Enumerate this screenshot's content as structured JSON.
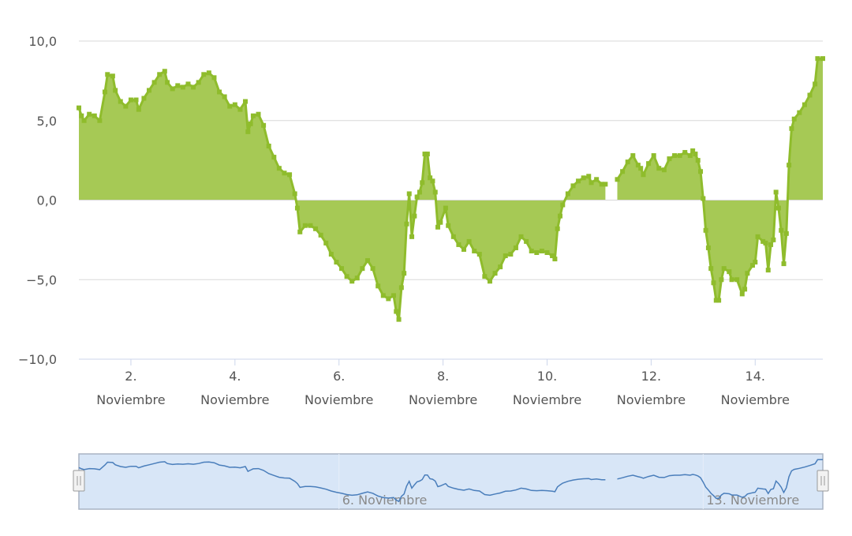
{
  "chart_data": {
    "type": "area",
    "x_unit": "day of November",
    "ylim": [
      -10,
      10
    ],
    "y_ticks": [
      {
        "value": 10,
        "label": "10,0"
      },
      {
        "value": 5,
        "label": "5,0"
      },
      {
        "value": 0,
        "label": "0,0"
      },
      {
        "value": -5,
        "label": "−5,0"
      },
      {
        "value": -10,
        "label": "−10,0"
      }
    ],
    "x_ticks": [
      {
        "value": 2,
        "day": "2.",
        "month": "Noviembre"
      },
      {
        "value": 4,
        "day": "4.",
        "month": "Noviembre"
      },
      {
        "value": 6,
        "day": "6.",
        "month": "Noviembre"
      },
      {
        "value": 8,
        "day": "8.",
        "month": "Noviembre"
      },
      {
        "value": 10,
        "day": "10.",
        "month": "Noviembre"
      },
      {
        "value": 12,
        "day": "12.",
        "month": "Noviembre"
      },
      {
        "value": 14,
        "day": "14.",
        "month": "Noviembre"
      }
    ],
    "grid": true,
    "colors": {
      "area": "#a6c955",
      "line": "#8fbc2c",
      "navigator_line": "#4a7ebb",
      "navigator_fill": "#d8e6f7"
    },
    "series": [
      {
        "segments": [
          [
            [
              1.0,
              5.8
            ],
            [
              1.05,
              5.3
            ],
            [
              1.1,
              5.0
            ],
            [
              1.2,
              5.4
            ],
            [
              1.3,
              5.3
            ],
            [
              1.4,
              5.0
            ],
            [
              1.5,
              6.8
            ],
            [
              1.55,
              7.9
            ],
            [
              1.65,
              7.8
            ],
            [
              1.7,
              6.9
            ],
            [
              1.8,
              6.2
            ],
            [
              1.9,
              5.9
            ],
            [
              2.0,
              6.3
            ],
            [
              2.1,
              6.3
            ],
            [
              2.15,
              5.7
            ],
            [
              2.25,
              6.4
            ],
            [
              2.35,
              6.9
            ],
            [
              2.45,
              7.4
            ],
            [
              2.55,
              7.9
            ],
            [
              2.65,
              8.1
            ],
            [
              2.7,
              7.4
            ],
            [
              2.8,
              7.0
            ],
            [
              2.9,
              7.2
            ],
            [
              3.0,
              7.1
            ],
            [
              3.1,
              7.3
            ],
            [
              3.2,
              7.1
            ],
            [
              3.3,
              7.4
            ],
            [
              3.4,
              7.9
            ],
            [
              3.5,
              8.0
            ],
            [
              3.6,
              7.7
            ],
            [
              3.7,
              6.8
            ],
            [
              3.8,
              6.5
            ],
            [
              3.9,
              5.9
            ],
            [
              4.0,
              6.0
            ],
            [
              4.1,
              5.7
            ],
            [
              4.2,
              6.2
            ],
            [
              4.25,
              4.3
            ],
            [
              4.3,
              4.8
            ],
            [
              4.35,
              5.3
            ],
            [
              4.45,
              5.4
            ],
            [
              4.55,
              4.7
            ],
            [
              4.65,
              3.4
            ],
            [
              4.75,
              2.7
            ],
            [
              4.85,
              2.0
            ],
            [
              4.95,
              1.7
            ],
            [
              5.05,
              1.6
            ],
            [
              5.15,
              0.4
            ],
            [
              5.2,
              -0.5
            ],
            [
              5.25,
              -2.0
            ],
            [
              5.35,
              -1.6
            ],
            [
              5.45,
              -1.6
            ],
            [
              5.55,
              -1.8
            ],
            [
              5.65,
              -2.2
            ],
            [
              5.75,
              -2.7
            ],
            [
              5.85,
              -3.4
            ],
            [
              5.95,
              -3.9
            ],
            [
              6.05,
              -4.3
            ],
            [
              6.15,
              -4.8
            ],
            [
              6.25,
              -5.1
            ],
            [
              6.35,
              -4.9
            ],
            [
              6.45,
              -4.3
            ],
            [
              6.55,
              -3.8
            ],
            [
              6.65,
              -4.3
            ],
            [
              6.75,
              -5.4
            ],
            [
              6.85,
              -6.0
            ],
            [
              6.95,
              -6.2
            ],
            [
              7.05,
              -6.0
            ],
            [
              7.1,
              -7.0
            ],
            [
              7.15,
              -7.5
            ],
            [
              7.2,
              -5.5
            ],
            [
              7.25,
              -4.6
            ],
            [
              7.3,
              -1.5
            ],
            [
              7.35,
              0.4
            ],
            [
              7.4,
              -2.3
            ],
            [
              7.45,
              -1.0
            ],
            [
              7.5,
              0.2
            ],
            [
              7.55,
              0.5
            ],
            [
              7.6,
              1.1
            ],
            [
              7.65,
              2.9
            ],
            [
              7.7,
              2.9
            ],
            [
              7.75,
              1.4
            ],
            [
              7.8,
              1.2
            ],
            [
              7.85,
              0.5
            ],
            [
              7.9,
              -1.7
            ],
            [
              7.95,
              -1.4
            ],
            [
              8.05,
              -0.5
            ],
            [
              8.1,
              -1.6
            ],
            [
              8.2,
              -2.3
            ],
            [
              8.3,
              -2.8
            ],
            [
              8.4,
              -3.1
            ],
            [
              8.5,
              -2.6
            ],
            [
              8.6,
              -3.2
            ],
            [
              8.7,
              -3.4
            ],
            [
              8.8,
              -4.8
            ],
            [
              8.9,
              -5.1
            ],
            [
              9.0,
              -4.6
            ],
            [
              9.1,
              -4.2
            ],
            [
              9.2,
              -3.5
            ],
            [
              9.3,
              -3.4
            ],
            [
              9.4,
              -3.0
            ],
            [
              9.5,
              -2.3
            ],
            [
              9.6,
              -2.6
            ],
            [
              9.7,
              -3.2
            ],
            [
              9.8,
              -3.3
            ],
            [
              9.9,
              -3.2
            ],
            [
              10.0,
              -3.3
            ],
            [
              10.1,
              -3.5
            ],
            [
              10.15,
              -3.7
            ],
            [
              10.2,
              -1.8
            ],
            [
              10.25,
              -1.0
            ],
            [
              10.3,
              -0.3
            ],
            [
              10.4,
              0.4
            ],
            [
              10.5,
              0.9
            ],
            [
              10.6,
              1.2
            ],
            [
              10.7,
              1.4
            ],
            [
              10.8,
              1.5
            ],
            [
              10.85,
              1.1
            ],
            [
              10.95,
              1.3
            ],
            [
              11.05,
              1.0
            ],
            [
              11.12,
              1.0
            ]
          ],
          [
            [
              11.35,
              1.3
            ],
            [
              11.45,
              1.8
            ],
            [
              11.55,
              2.4
            ],
            [
              11.65,
              2.8
            ],
            [
              11.75,
              2.2
            ],
            [
              11.8,
              2.0
            ],
            [
              11.85,
              1.6
            ],
            [
              11.95,
              2.3
            ],
            [
              12.05,
              2.8
            ],
            [
              12.15,
              2.0
            ],
            [
              12.25,
              1.9
            ],
            [
              12.35,
              2.6
            ],
            [
              12.45,
              2.8
            ],
            [
              12.55,
              2.8
            ],
            [
              12.65,
              3.0
            ],
            [
              12.75,
              2.8
            ],
            [
              12.8,
              3.1
            ],
            [
              12.85,
              2.9
            ],
            [
              12.9,
              2.5
            ],
            [
              12.95,
              1.8
            ],
            [
              13.0,
              0.1
            ],
            [
              13.05,
              -1.9
            ],
            [
              13.1,
              -3.0
            ],
            [
              13.15,
              -4.3
            ],
            [
              13.2,
              -5.2
            ],
            [
              13.25,
              -6.3
            ],
            [
              13.3,
              -6.3
            ],
            [
              13.35,
              -5.0
            ],
            [
              13.4,
              -4.3
            ],
            [
              13.5,
              -4.5
            ],
            [
              13.55,
              -5.0
            ],
            [
              13.65,
              -5.0
            ],
            [
              13.75,
              -5.9
            ],
            [
              13.8,
              -5.6
            ],
            [
              13.85,
              -4.6
            ],
            [
              13.95,
              -4.1
            ],
            [
              14.0,
              -3.9
            ],
            [
              14.05,
              -2.3
            ],
            [
              14.15,
              -2.6
            ],
            [
              14.2,
              -2.7
            ],
            [
              14.25,
              -4.4
            ],
            [
              14.3,
              -2.8
            ],
            [
              14.35,
              -2.5
            ],
            [
              14.4,
              0.5
            ],
            [
              14.45,
              -0.5
            ],
            [
              14.5,
              -1.9
            ],
            [
              14.55,
              -4.0
            ],
            [
              14.6,
              -2.1
            ],
            [
              14.65,
              2.2
            ],
            [
              14.7,
              4.5
            ],
            [
              14.75,
              5.1
            ],
            [
              14.85,
              5.5
            ],
            [
              14.95,
              6.0
            ],
            [
              15.05,
              6.6
            ],
            [
              15.15,
              7.3
            ],
            [
              15.2,
              8.9
            ],
            [
              15.3,
              8.9
            ]
          ]
        ]
      }
    ],
    "navigator": {
      "x_ticks": [
        {
          "value": 6,
          "label": "6. Noviembre"
        },
        {
          "value": 13,
          "label": "13. Noviembre"
        }
      ]
    }
  }
}
